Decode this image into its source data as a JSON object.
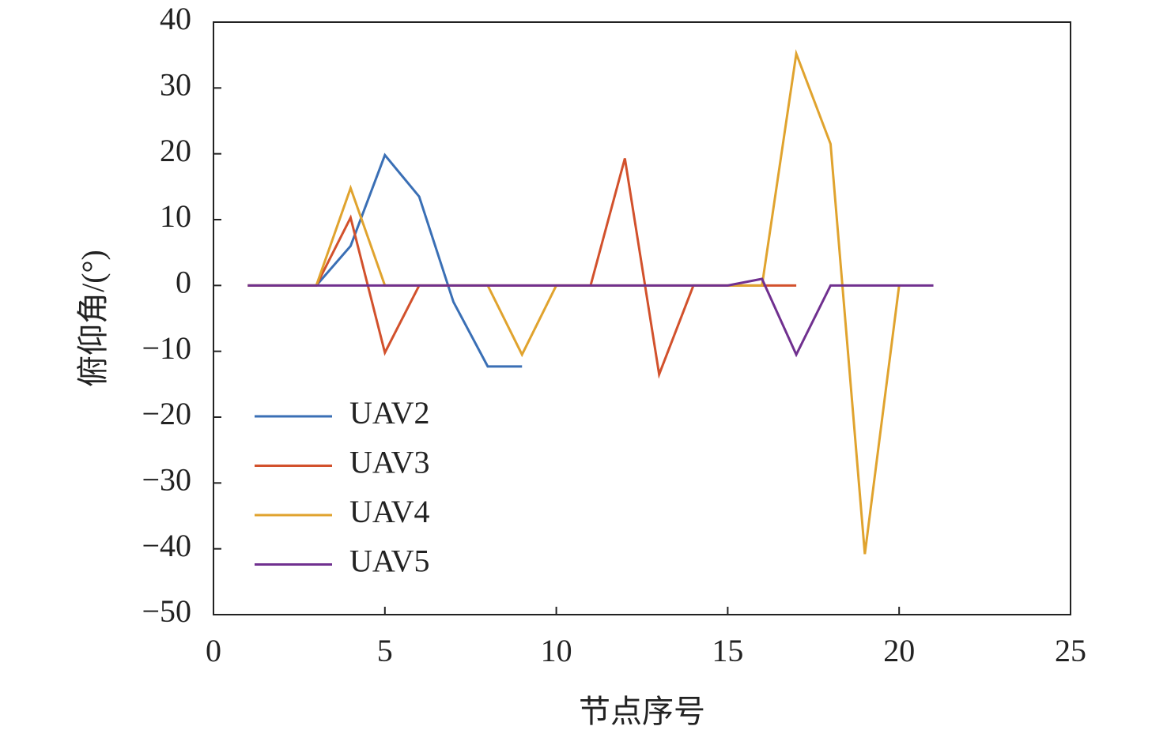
{
  "chart_data": {
    "type": "line",
    "xlabel": "节点序号",
    "ylabel": "俯仰角/(°)",
    "xlim": [
      0,
      25
    ],
    "xticks": [
      0,
      5,
      10,
      15,
      20,
      25
    ],
    "ylim": [
      -50,
      40
    ],
    "yticks": [
      {
        "value": -50,
        "label": "−50"
      },
      {
        "value": -40,
        "label": "−40"
      },
      {
        "value": -30,
        "label": "−30"
      },
      {
        "value": -20,
        "label": "−20"
      },
      {
        "value": -10,
        "label": "−10"
      },
      0,
      10,
      20,
      30,
      40
    ],
    "legend": "lower left",
    "series": [
      {
        "name": "UAV2",
        "color": "#3a6fb5",
        "x": [
          1,
          2,
          3,
          4,
          5,
          6,
          7,
          8,
          9
        ],
        "values": [
          0,
          0,
          0,
          6,
          19.8,
          13.5,
          -2.5,
          -12.3,
          -12.3
        ]
      },
      {
        "name": "UAV3",
        "color": "#d2512c",
        "x": [
          1,
          2,
          3,
          4,
          5,
          6,
          7,
          8,
          9,
          10,
          11,
          12,
          13,
          14,
          15,
          16,
          17
        ],
        "values": [
          0,
          0,
          0,
          10.3,
          -10.2,
          0,
          0,
          0,
          0,
          0,
          0,
          19.3,
          -13.5,
          0,
          0,
          0,
          0
        ]
      },
      {
        "name": "UAV4",
        "color": "#e0a32e",
        "x": [
          1,
          2,
          3,
          4,
          5,
          6,
          7,
          8,
          9,
          10,
          11,
          12,
          13,
          14,
          15,
          16,
          17,
          18,
          19,
          20
        ],
        "values": [
          0,
          0,
          0,
          14.8,
          0,
          0,
          0,
          0,
          -10.5,
          0,
          0,
          0,
          0,
          0,
          0,
          0,
          35.2,
          21.5,
          -40.8,
          0
        ]
      },
      {
        "name": "UAV5",
        "color": "#70308f",
        "x": [
          1,
          2,
          3,
          4,
          5,
          6,
          7,
          8,
          9,
          10,
          11,
          12,
          13,
          14,
          15,
          16,
          17,
          18,
          19,
          20,
          21
        ],
        "values": [
          0,
          0,
          0,
          0,
          0,
          0,
          0,
          0,
          0,
          0,
          0,
          0,
          0,
          0,
          0,
          1,
          -10.5,
          0,
          0,
          0,
          0
        ]
      }
    ]
  }
}
